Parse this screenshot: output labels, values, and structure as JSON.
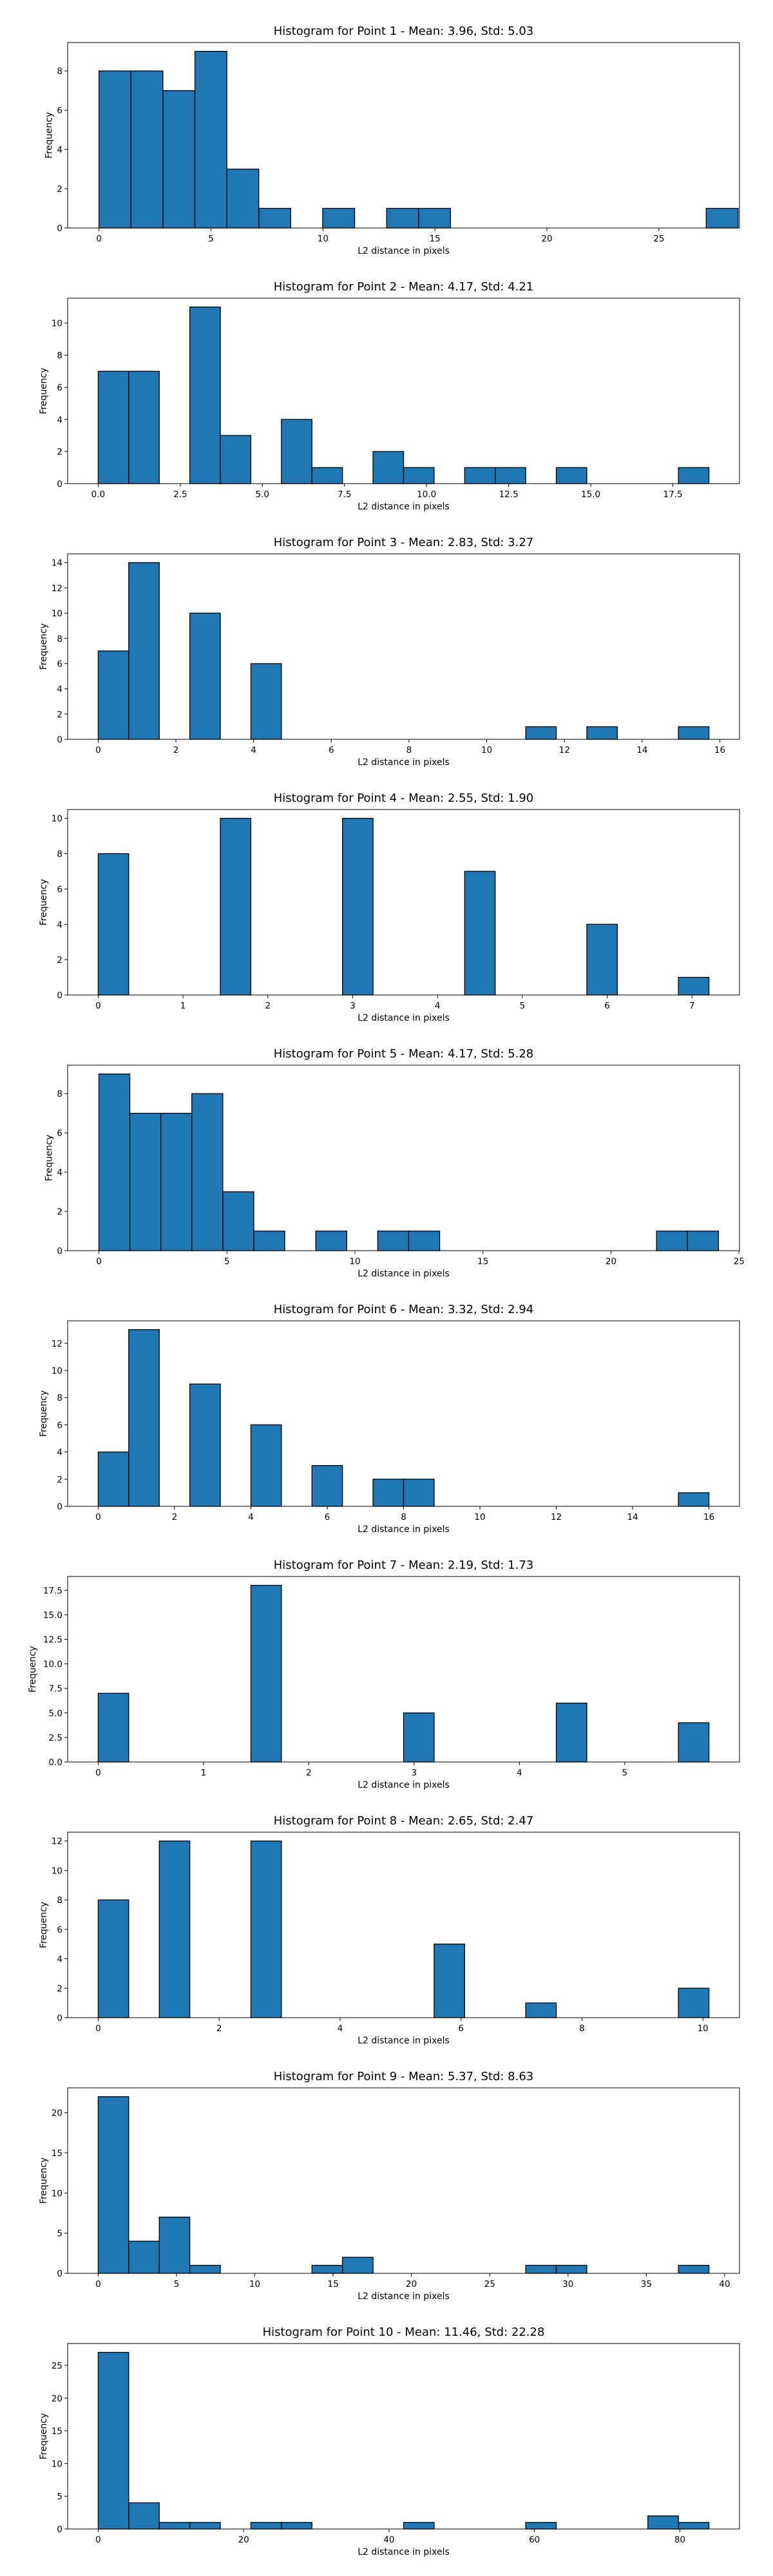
{
  "style": {
    "bar_color": "#1f77b4",
    "edge_color": "#000000"
  },
  "chart_data": [
    {
      "type": "bar",
      "title": "Histogram for Point 1 - Mean: 3.96, Std: 5.03",
      "xlabel": "L2 distance in pixels",
      "ylabel": "Frequency",
      "xlim": [
        -1.4,
        28.6
      ],
      "ylim": [
        0,
        9.45
      ],
      "xticks": [
        0,
        5,
        10,
        15,
        20,
        25
      ],
      "xtick_labels": [
        "0",
        "5",
        "10",
        "15",
        "20",
        "25"
      ],
      "yticks": [
        0,
        2,
        4,
        6,
        8
      ],
      "ytick_labels": [
        "0",
        "2",
        "4",
        "6",
        "8"
      ],
      "bin_edges": [
        0.0,
        1.427,
        2.854,
        4.281,
        5.708,
        7.135,
        8.562,
        9.989,
        11.416,
        12.843,
        14.27,
        15.697,
        17.124,
        18.551,
        19.978,
        21.405,
        22.832,
        24.259,
        25.686,
        27.113,
        28.54
      ],
      "values": [
        8,
        8,
        7,
        9,
        3,
        1,
        0,
        1,
        0,
        1,
        1,
        0,
        0,
        0,
        0,
        0,
        0,
        0,
        0,
        1
      ]
    },
    {
      "type": "bar",
      "title": "Histogram for Point 2 - Mean: 4.17, Std: 4.21",
      "xlabel": "L2 distance in pixels",
      "ylabel": "Frequency",
      "xlim": [
        -0.93,
        19.53
      ],
      "ylim": [
        0,
        11.55
      ],
      "xticks": [
        0,
        2.5,
        5,
        7.5,
        10,
        12.5,
        15,
        17.5
      ],
      "xtick_labels": [
        "0.0",
        "2.5",
        "5.0",
        "7.5",
        "10.0",
        "12.5",
        "15.0",
        "17.5"
      ],
      "yticks": [
        0,
        2,
        4,
        6,
        8,
        10
      ],
      "ytick_labels": [
        "0",
        "2",
        "4",
        "6",
        "8",
        "10"
      ],
      "bin_edges": [
        0.0,
        0.93,
        1.86,
        2.79,
        3.72,
        4.65,
        5.58,
        6.51,
        7.44,
        8.37,
        9.3,
        10.23,
        11.16,
        12.09,
        13.02,
        13.95,
        14.88,
        15.81,
        16.74,
        17.67,
        18.6
      ],
      "values": [
        7,
        7,
        0,
        11,
        3,
        0,
        4,
        1,
        0,
        2,
        1,
        0,
        1,
        1,
        0,
        1,
        0,
        0,
        0,
        1
      ]
    },
    {
      "type": "bar",
      "title": "Histogram for Point 3 - Mean: 2.83, Std: 3.27",
      "xlabel": "L2 distance in pixels",
      "ylabel": "Frequency",
      "xlim": [
        -0.786,
        16.506
      ],
      "ylim": [
        0,
        14.7
      ],
      "xticks": [
        0,
        2,
        4,
        6,
        8,
        10,
        12,
        14,
        16
      ],
      "xtick_labels": [
        "0",
        "2",
        "4",
        "6",
        "8",
        "10",
        "12",
        "14",
        "16"
      ],
      "yticks": [
        0,
        2,
        4,
        6,
        8,
        10,
        12,
        14
      ],
      "ytick_labels": [
        "0",
        "2",
        "4",
        "6",
        "8",
        "10",
        "12",
        "14"
      ],
      "bin_edges": [
        0.0,
        0.786,
        1.572,
        2.358,
        3.144,
        3.93,
        4.716,
        5.502,
        6.288,
        7.074,
        7.86,
        8.646,
        9.432,
        10.218,
        11.004,
        11.79,
        12.576,
        13.362,
        14.148,
        14.934,
        15.72
      ],
      "values": [
        7,
        14,
        0,
        10,
        0,
        6,
        0,
        0,
        0,
        0,
        0,
        0,
        0,
        0,
        1,
        0,
        1,
        0,
        0,
        1
      ]
    },
    {
      "type": "bar",
      "title": "Histogram for Point 4 - Mean: 2.55, Std: 1.90",
      "xlabel": "L2 distance in pixels",
      "ylabel": "Frequency",
      "xlim": [
        -0.36,
        7.56
      ],
      "ylim": [
        0,
        10.5
      ],
      "xticks": [
        0,
        1,
        2,
        3,
        4,
        5,
        6,
        7
      ],
      "xtick_labels": [
        "0",
        "1",
        "2",
        "3",
        "4",
        "5",
        "6",
        "7"
      ],
      "yticks": [
        0,
        2,
        4,
        6,
        8,
        10
      ],
      "ytick_labels": [
        "0",
        "2",
        "4",
        "6",
        "8",
        "10"
      ],
      "bin_edges": [
        0.0,
        0.36,
        0.72,
        1.08,
        1.44,
        1.8,
        2.16,
        2.52,
        2.88,
        3.24,
        3.6,
        3.96,
        4.32,
        4.68,
        5.04,
        5.4,
        5.76,
        6.12,
        6.48,
        6.84,
        7.2
      ],
      "values": [
        8,
        0,
        0,
        0,
        10,
        0,
        0,
        0,
        10,
        0,
        0,
        0,
        7,
        0,
        0,
        0,
        4,
        0,
        0,
        1
      ]
    },
    {
      "type": "bar",
      "title": "Histogram for Point 5 - Mean: 4.17, Std: 5.28",
      "xlabel": "L2 distance in pixels",
      "ylabel": "Frequency",
      "xlim": [
        -1.22,
        25.02
      ],
      "ylim": [
        0,
        9.45
      ],
      "xticks": [
        0,
        5,
        10,
        15,
        20,
        25
      ],
      "xtick_labels": [
        "0",
        "5",
        "10",
        "15",
        "20",
        "25"
      ],
      "yticks": [
        0,
        2,
        4,
        6,
        8
      ],
      "ytick_labels": [
        "0",
        "2",
        "4",
        "6",
        "8"
      ],
      "bin_edges": [
        0.0,
        1.21,
        2.42,
        3.63,
        4.84,
        6.05,
        7.26,
        8.47,
        9.68,
        10.89,
        12.1,
        13.31,
        14.52,
        15.73,
        16.94,
        18.15,
        19.36,
        20.57,
        21.78,
        22.99,
        24.2
      ],
      "values": [
        9,
        7,
        7,
        8,
        3,
        1,
        0,
        1,
        0,
        1,
        1,
        0,
        0,
        0,
        0,
        0,
        0,
        0,
        1,
        1
      ]
    },
    {
      "type": "bar",
      "title": "Histogram for Point 6 - Mean: 3.32, Std: 2.94",
      "xlabel": "L2 distance in pixels",
      "ylabel": "Frequency",
      "xlim": [
        -0.8,
        16.8
      ],
      "ylim": [
        0,
        13.65
      ],
      "xticks": [
        0,
        2,
        4,
        6,
        8,
        10,
        12,
        14,
        16
      ],
      "xtick_labels": [
        "0",
        "2",
        "4",
        "6",
        "8",
        "10",
        "12",
        "14",
        "16"
      ],
      "yticks": [
        0,
        2,
        4,
        6,
        8,
        10,
        12
      ],
      "ytick_labels": [
        "0",
        "2",
        "4",
        "6",
        "8",
        "10",
        "12"
      ],
      "bin_edges": [
        0.0,
        0.8,
        1.6,
        2.4,
        3.2,
        4.0,
        4.8,
        5.6,
        6.4,
        7.2,
        8.0,
        8.8,
        9.6,
        10.4,
        11.2,
        12.0,
        12.8,
        13.6,
        14.4,
        15.2,
        16.0
      ],
      "values": [
        4,
        13,
        0,
        9,
        0,
        6,
        0,
        3,
        0,
        2,
        2,
        0,
        0,
        0,
        0,
        0,
        0,
        0,
        0,
        1
      ]
    },
    {
      "type": "bar",
      "title": "Histogram for Point 7 - Mean: 2.19, Std: 1.73",
      "xlabel": "L2 distance in pixels",
      "ylabel": "Frequency",
      "xlim": [
        -0.29,
        6.09
      ],
      "ylim": [
        0,
        18.9
      ],
      "xticks": [
        0,
        1,
        2,
        3,
        4,
        5
      ],
      "xtick_labels": [
        "0",
        "1",
        "2",
        "3",
        "4",
        "5"
      ],
      "yticks": [
        0,
        2.5,
        5,
        7.5,
        10,
        12.5,
        15,
        17.5
      ],
      "ytick_labels": [
        "0.0",
        "2.5",
        "5.0",
        "7.5",
        "10.0",
        "12.5",
        "15.0",
        "17.5"
      ],
      "bin_edges": [
        0.0,
        0.29,
        0.58,
        0.87,
        1.16,
        1.45,
        1.74,
        2.03,
        2.32,
        2.61,
        2.9,
        3.19,
        3.48,
        3.77,
        4.06,
        4.35,
        4.64,
        4.93,
        5.22,
        5.51,
        5.8
      ],
      "values": [
        7,
        0,
        0,
        0,
        0,
        18,
        0,
        0,
        0,
        0,
        5,
        0,
        0,
        0,
        0,
        6,
        0,
        0,
        0,
        4
      ]
    },
    {
      "type": "bar",
      "title": "Histogram for Point 8 - Mean: 2.65, Std: 2.47",
      "xlabel": "L2 distance in pixels",
      "ylabel": "Frequency",
      "xlim": [
        -0.505,
        10.605
      ],
      "ylim": [
        0,
        12.6
      ],
      "xticks": [
        0,
        2,
        4,
        6,
        8,
        10
      ],
      "xtick_labels": [
        "0",
        "2",
        "4",
        "6",
        "8",
        "10"
      ],
      "yticks": [
        0,
        2,
        4,
        6,
        8,
        10,
        12
      ],
      "ytick_labels": [
        "0",
        "2",
        "4",
        "6",
        "8",
        "10",
        "12"
      ],
      "bin_edges": [
        0.0,
        0.505,
        1.01,
        1.515,
        2.02,
        2.525,
        3.03,
        3.535,
        4.04,
        4.545,
        5.05,
        5.555,
        6.06,
        6.565,
        7.07,
        7.575,
        8.08,
        8.585,
        9.09,
        9.595,
        10.1
      ],
      "values": [
        8,
        0,
        12,
        0,
        0,
        12,
        0,
        0,
        0,
        0,
        0,
        5,
        0,
        0,
        1,
        0,
        0,
        0,
        0,
        2
      ]
    },
    {
      "type": "bar",
      "title": "Histogram for Point 9 - Mean: 5.37, Std: 8.63",
      "xlabel": "L2 distance in pixels",
      "ylabel": "Frequency",
      "xlim": [
        -1.95,
        40.95
      ],
      "ylim": [
        0,
        23.1
      ],
      "xticks": [
        0,
        5,
        10,
        15,
        20,
        25,
        30,
        35,
        40
      ],
      "xtick_labels": [
        "0",
        "5",
        "10",
        "15",
        "20",
        "25",
        "30",
        "35",
        "40"
      ],
      "yticks": [
        0,
        5,
        10,
        15,
        20
      ],
      "ytick_labels": [
        "0",
        "5",
        "10",
        "15",
        "20"
      ],
      "bin_edges": [
        0.0,
        1.95,
        3.9,
        5.85,
        7.8,
        9.75,
        11.7,
        13.65,
        15.6,
        17.55,
        19.5,
        21.45,
        23.4,
        25.35,
        27.3,
        29.25,
        31.2,
        33.15,
        35.1,
        37.05,
        39.0
      ],
      "values": [
        22,
        4,
        7,
        1,
        0,
        0,
        0,
        1,
        2,
        0,
        0,
        0,
        0,
        0,
        1,
        1,
        0,
        0,
        0,
        1
      ]
    },
    {
      "type": "bar",
      "title": "Histogram for Point 10 - Mean: 11.46, Std: 22.28",
      "xlabel": "L2 distance in pixels",
      "ylabel": "Frequency",
      "xlim": [
        -4.2,
        88.2
      ],
      "ylim": [
        0,
        28.35
      ],
      "xticks": [
        0,
        20,
        40,
        60,
        80
      ],
      "xtick_labels": [
        "0",
        "20",
        "40",
        "60",
        "80"
      ],
      "yticks": [
        0,
        5,
        10,
        15,
        20,
        25
      ],
      "ytick_labels": [
        "0",
        "5",
        "10",
        "15",
        "20",
        "25"
      ],
      "bin_edges": [
        0.0,
        4.2,
        8.4,
        12.6,
        16.8,
        21.0,
        25.2,
        29.4,
        33.6,
        37.8,
        42.0,
        46.2,
        50.4,
        54.6,
        58.8,
        63.0,
        67.2,
        71.4,
        75.6,
        79.8,
        84.0
      ],
      "values": [
        27,
        4,
        1,
        1,
        0,
        1,
        1,
        0,
        0,
        0,
        1,
        0,
        0,
        0,
        1,
        0,
        0,
        0,
        2,
        1
      ]
    }
  ]
}
